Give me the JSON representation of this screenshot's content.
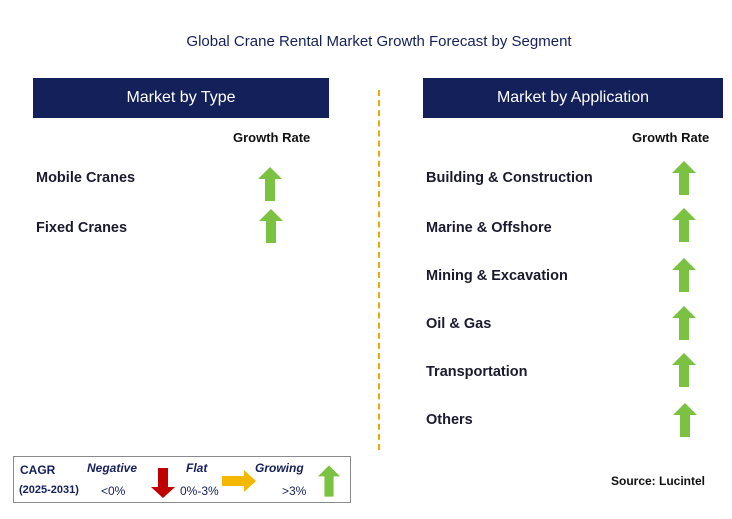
{
  "title": "Global Crane Rental Market Growth Forecast by Segment",
  "left_panel": {
    "header": "Market by Type",
    "growth_label": "Growth Rate",
    "items": [
      {
        "label": "Mobile Cranes",
        "trend": "growing"
      },
      {
        "label": "Fixed Cranes",
        "trend": "growing"
      }
    ]
  },
  "right_panel": {
    "header": "Market by Application",
    "growth_label": "Growth Rate",
    "items": [
      {
        "label": "Building & Construction",
        "trend": "growing"
      },
      {
        "label": "Marine & Offshore",
        "trend": "growing"
      },
      {
        "label": "Mining & Excavation",
        "trend": "growing"
      },
      {
        "label": "Oil & Gas",
        "trend": "growing"
      },
      {
        "label": "Transportation",
        "trend": "growing"
      },
      {
        "label": "Others",
        "trend": "growing"
      }
    ]
  },
  "legend": {
    "cagr": "CAGR",
    "period": "(2025-2031)",
    "negative_label": "Negative",
    "negative_value": "<0%",
    "flat_label": "Flat",
    "flat_value": "0%-3%",
    "growing_label": "Growing",
    "growing_value": ">3%"
  },
  "source": "Source: Lucintel",
  "colors": {
    "header_bg": "#14205a",
    "growing_arrow": "#7cc242",
    "negative_arrow": "#c00000",
    "flat_arrow": "#f5b800",
    "divider": "#f0a800"
  }
}
